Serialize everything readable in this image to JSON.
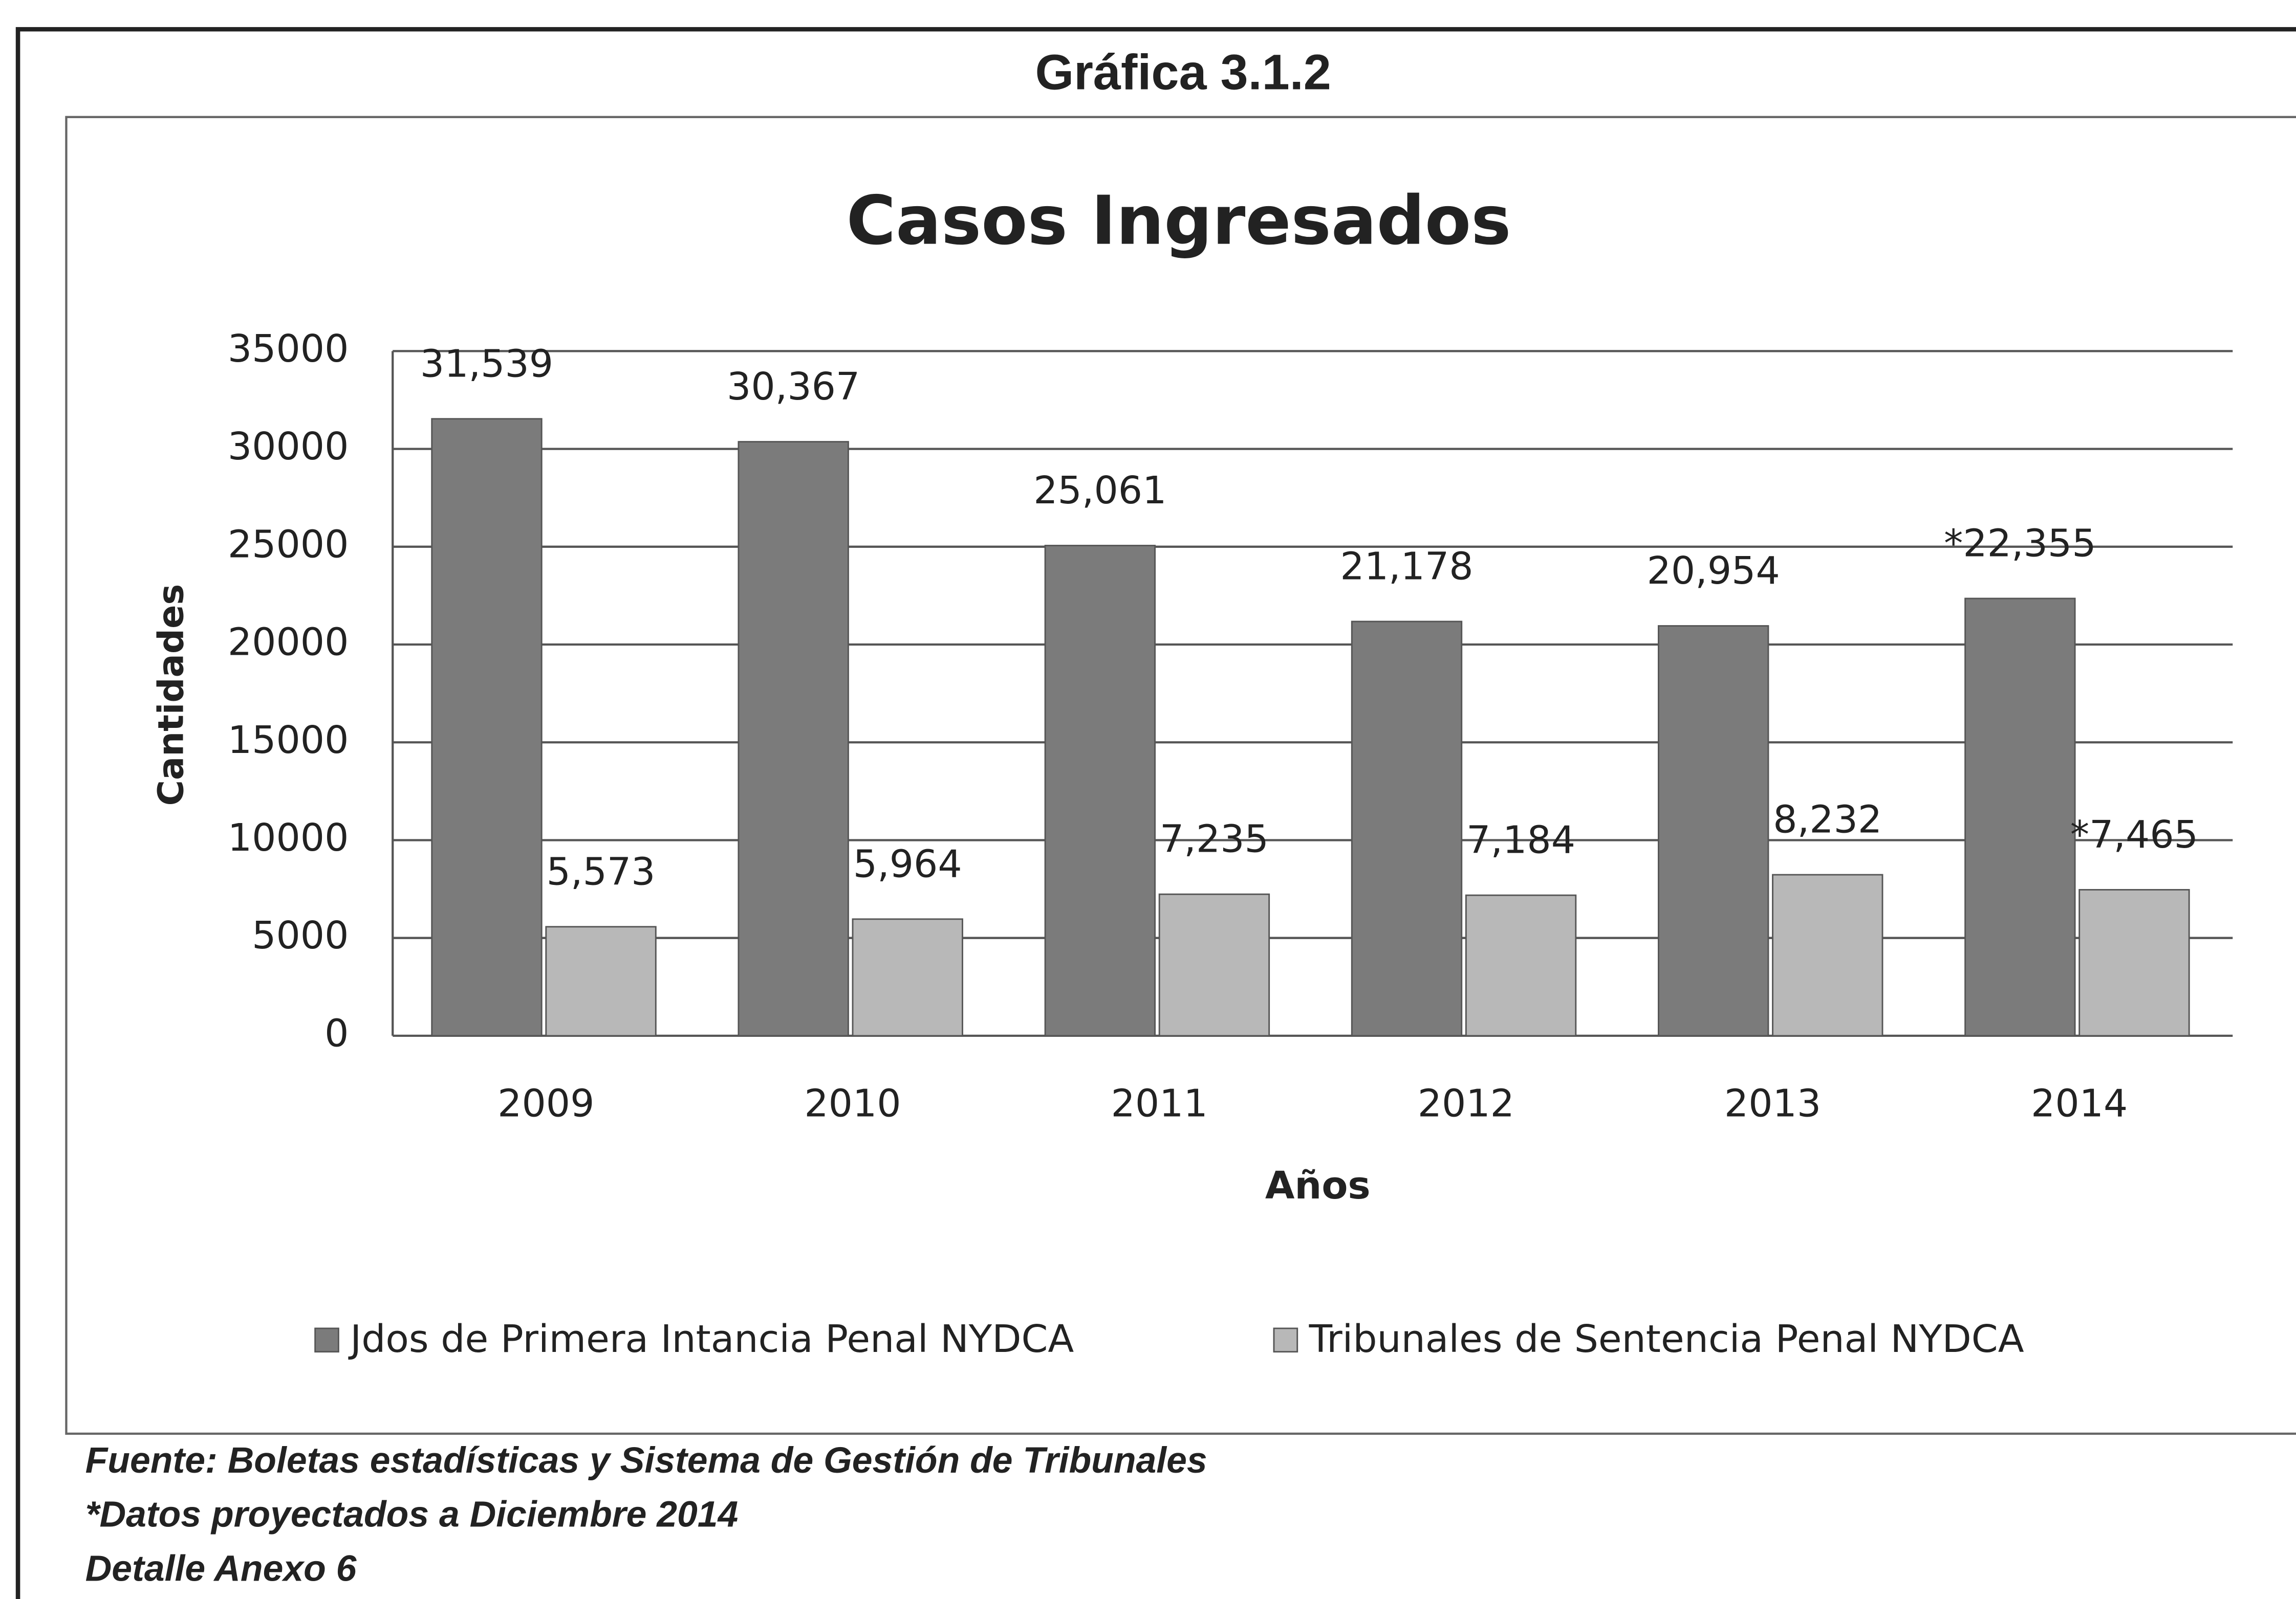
{
  "heading": "Gráfica 3.1.2",
  "chart_data": {
    "type": "bar",
    "title": "Casos Ingresados",
    "categories": [
      "2009",
      "2010",
      "2011",
      "2012",
      "2013",
      "2014"
    ],
    "series": [
      {
        "name": "Jdos de Primera Intancia Penal NYDCA",
        "color": "#7b7b7b",
        "values": [
          31539,
          30367,
          25061,
          21178,
          20954,
          22355
        ],
        "value_labels": [
          "31,539",
          "30,367",
          "25,061",
          "21,178",
          "20,954",
          "*22,355"
        ]
      },
      {
        "name": "Tribunales de Sentencia Penal NYDCA",
        "color": "#b8b8b8",
        "values": [
          5573,
          5964,
          7235,
          7184,
          8232,
          7465
        ],
        "value_labels": [
          "5,573",
          "5,964",
          "7,235",
          "7,184",
          "8,232",
          "*7,465"
        ]
      }
    ],
    "ylim": [
      0,
      35000
    ],
    "yticks": [
      0,
      5000,
      10000,
      15000,
      20000,
      25000,
      30000,
      35000
    ],
    "ylabel": "Cantidades",
    "xlabel": "Años",
    "grid": true,
    "legend": "bottom"
  },
  "notes": [
    "Fuente: Boletas estadísticas y Sistema de Gestión de Tribunales",
    "*Datos proyectados a Diciembre 2014",
    "Detalle Anexo 6"
  ]
}
